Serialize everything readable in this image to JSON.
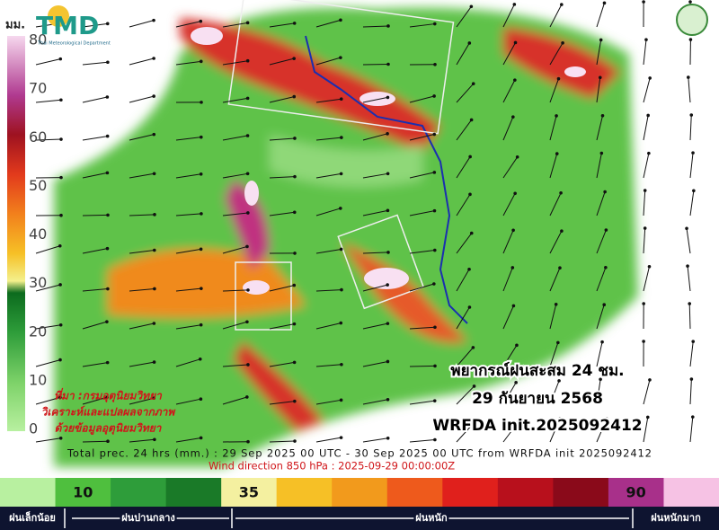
{
  "header": {
    "unit": "มม.",
    "logo": "TMD",
    "logo_subtitle": "Thai Meteorological Department"
  },
  "legend": {
    "ticks": [
      80,
      70,
      60,
      50,
      40,
      30,
      20,
      10,
      0
    ]
  },
  "source_note": [
    "ที่มา :กรมอุตุนิยมวิทยา",
    "วิเคราะห์และแปลผลจากภาพ",
    "ด้วยข้อมูลอุตุนิยมวิทยา"
  ],
  "forecast": {
    "title": "พยากรณ์ฝนสะสม 24 ชม.",
    "date": "29 กันยายน 2568",
    "model": "WRFDA  init.2025092412"
  },
  "footer": {
    "precip_caption": "Total prec. 24 hrs (mm.) : 29 Sep 2025 00 UTC - 30 Sep 2025 00 UTC from WRFDA init 2025092412",
    "wind_caption": "Wind direction 850 hPa : 2025-09-29 00:00:00Z"
  },
  "scale_bar": {
    "labels": [
      "10",
      "35",
      "90"
    ]
  },
  "categories": [
    "ฝนเล็กน้อย",
    "ฝนปานกลาง",
    "ฝนหนัก",
    "ฝนหนักมาก"
  ]
}
